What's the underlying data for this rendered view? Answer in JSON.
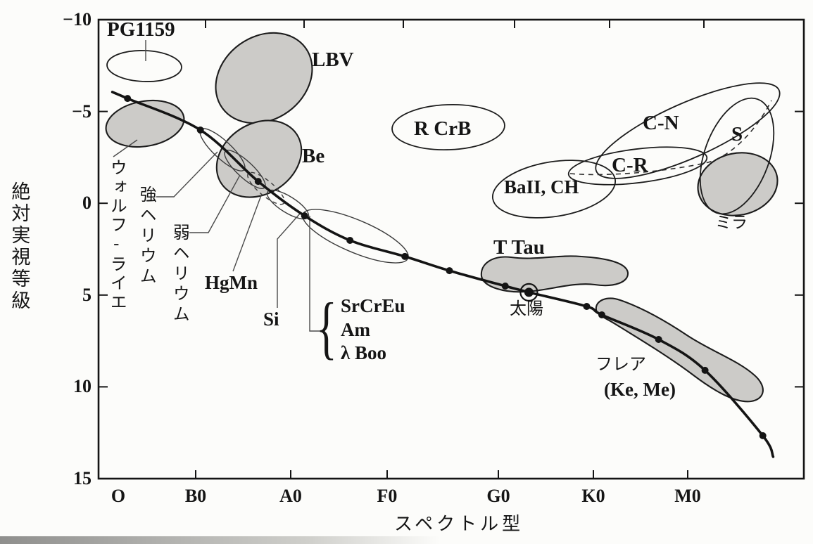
{
  "colors": {
    "region_fill": "#cccbc8",
    "ink": "#151515",
    "background": "#fcfcfa"
  },
  "axes": {
    "y_title": "絶対実視等級",
    "x_title": "スペクトル型",
    "y_ticks": [
      "−10",
      "−5",
      "0",
      "5",
      "10",
      "15"
    ],
    "x_ticks": [
      "O",
      "B0",
      "A0",
      "F0",
      "G0",
      "K0",
      "M0"
    ]
  },
  "labels": {
    "pg1159": "PG1159",
    "lbv": "LBV",
    "be": "Be",
    "r_crb": "R CrB",
    "c_n": "C-N",
    "s": "S",
    "c_r": "C-R",
    "ba2_ch": "BaII, CH",
    "mira": "ミラ",
    "t_tau": "T Tau",
    "sun": "太陽",
    "flare": "フレア",
    "flare_sub": "(Ke, Me)",
    "hgmn": "HgMn",
    "si": "Si",
    "sr_cr_eu": "SrCrEu",
    "am": "Am",
    "lambda_boo": "λ Boo",
    "wolf_rayet": "ウォルフ-ライエ",
    "strong_helium": "強ヘリウム",
    "weak_helium": "弱ヘリウム",
    "brace": "{"
  },
  "chart_data": {
    "type": "scatter",
    "xlabel": "スペクトル型",
    "ylabel": "絶対実視等級",
    "x_tick_labels": [
      "O",
      "B0",
      "A0",
      "F0",
      "G0",
      "K0",
      "M0"
    ],
    "ylim": [
      15,
      -10
    ],
    "y_axis_inverted": true,
    "grid": false,
    "main_sequence": {
      "description": "主系列 — points as [st, Mv, has_dot]; st is spectral position with B0=10, A0=20, F0=30, G0=40, K0=50, M0=60",
      "points": [
        [
          1.2,
          -6.06,
          0
        ],
        [
          2.8,
          -5.71,
          1
        ],
        [
          10.5,
          -3.99,
          1
        ],
        [
          16.6,
          -1.19,
          1
        ],
        [
          21.5,
          0.68,
          1
        ],
        [
          26.3,
          2.02,
          1
        ],
        [
          32.1,
          2.9,
          1
        ],
        [
          36.8,
          3.67,
          1
        ],
        [
          42.7,
          4.51,
          1
        ],
        [
          45.2,
          4.85,
          0
        ],
        [
          51.3,
          5.62,
          1
        ],
        [
          52.9,
          6.08,
          1
        ],
        [
          58.9,
          7.42,
          1
        ],
        [
          63.8,
          9.1,
          1
        ],
        [
          69.9,
          12.66,
          1
        ],
        [
          71.0,
          13.81,
          0
        ]
      ]
    },
    "sun": {
      "label": "太陽",
      "st": 45.2,
      "Mv": 4.85
    },
    "regions": [
      {
        "label": "PG1159",
        "shaded": false,
        "sp_range": "O–B1",
        "Mv_range": [
          -8.3,
          -6.7
        ]
      },
      {
        "label": "ウォルフ-ライエ",
        "shaded": true,
        "sp_range": "O2–B0",
        "Mv_range": [
          -5.6,
          -3.0
        ]
      },
      {
        "label": "LBV",
        "shaded": true,
        "sp_range": "B0–B8",
        "Mv_range": [
          -9.3,
          -4.3
        ]
      },
      {
        "label": "強ヘリウム",
        "shaded": false,
        "sp_range": "B0–B5",
        "Mv_range": [
          -4.0,
          -1.2
        ]
      },
      {
        "label": "Be",
        "shaded": true,
        "sp_range": "B2–B9",
        "Mv_range": [
          -4.6,
          0.0
        ]
      },
      {
        "label": "弱ヘリウム",
        "shaded": false,
        "sp_range": "B3–B7",
        "Mv_range": [
          -3.0,
          0.1
        ]
      },
      {
        "label": "HgMn",
        "shaded": false,
        "sp_range": "B6–A1",
        "Mv_range": [
          -1.5,
          0.9
        ]
      },
      {
        "label": "Si",
        "shaded": false,
        "sp_range": "B8–A3",
        "Mv_range": [
          -0.7,
          0.9
        ]
      },
      {
        "label": "SrCrEu, Am, λ Boo",
        "shaded": false,
        "sp_range": "A1–F2",
        "Mv_range": [
          0.6,
          3.0
        ]
      },
      {
        "label": "R CrB",
        "shaded": false,
        "sp_range": "F0–G0",
        "Mv_range": [
          -5.3,
          -2.9
        ]
      },
      {
        "label": "BaII, CH",
        "shaded": false,
        "sp_range": "G0–K2",
        "Mv_range": [
          -2.3,
          0.7
        ]
      },
      {
        "label": "C-R",
        "shaded": false,
        "sp_range": "G7–M2",
        "Mv_range": [
          -3.0,
          -1.1
        ]
      },
      {
        "label": "C-N",
        "shaded": false,
        "sp_range": "K0–M9",
        "Mv_range": [
          -6.7,
          -1.3
        ]
      },
      {
        "label": "S",
        "shaded": false,
        "sp_range": "M1–M9",
        "Mv_range": [
          -5.8,
          0.7
        ]
      },
      {
        "label": "ミラ",
        "shaded": true,
        "sp_range": "M1–M9",
        "Mv_range": [
          -2.5,
          0.7
        ]
      },
      {
        "label": "T Tau",
        "shaded": true,
        "sp_range": "F9–K4",
        "Mv_range": [
          2.7,
          5.1
        ]
      },
      {
        "label": "フレア (Ke, Me)",
        "shaded": true,
        "sp_range": "K0–M8",
        "Mv_range": [
          5.2,
          11.3
        ]
      }
    ]
  }
}
